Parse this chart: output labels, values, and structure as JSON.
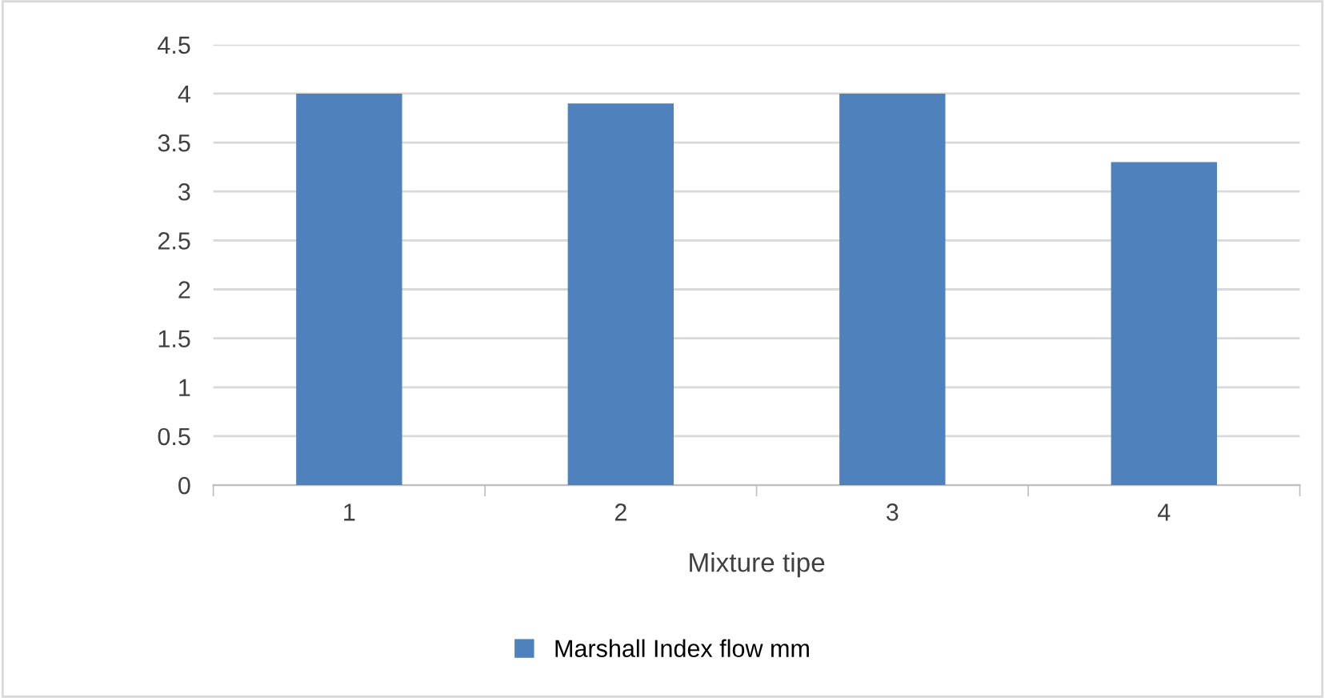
{
  "chart_data": {
    "type": "bar",
    "xlabel": "Mixture tipe",
    "categories": [
      "1",
      "2",
      "3",
      "4"
    ],
    "series": [
      {
        "name": "Marshall Index flow mm",
        "color": "#4f81bd",
        "values": [
          4,
          3.9,
          4,
          3.3
        ]
      }
    ],
    "ylim": [
      0,
      4.5
    ],
    "yticks": [
      0,
      0.5,
      1,
      1.5,
      2,
      2.5,
      3,
      3.5,
      4,
      4.5
    ],
    "grid": "y",
    "legend": "bottom"
  }
}
